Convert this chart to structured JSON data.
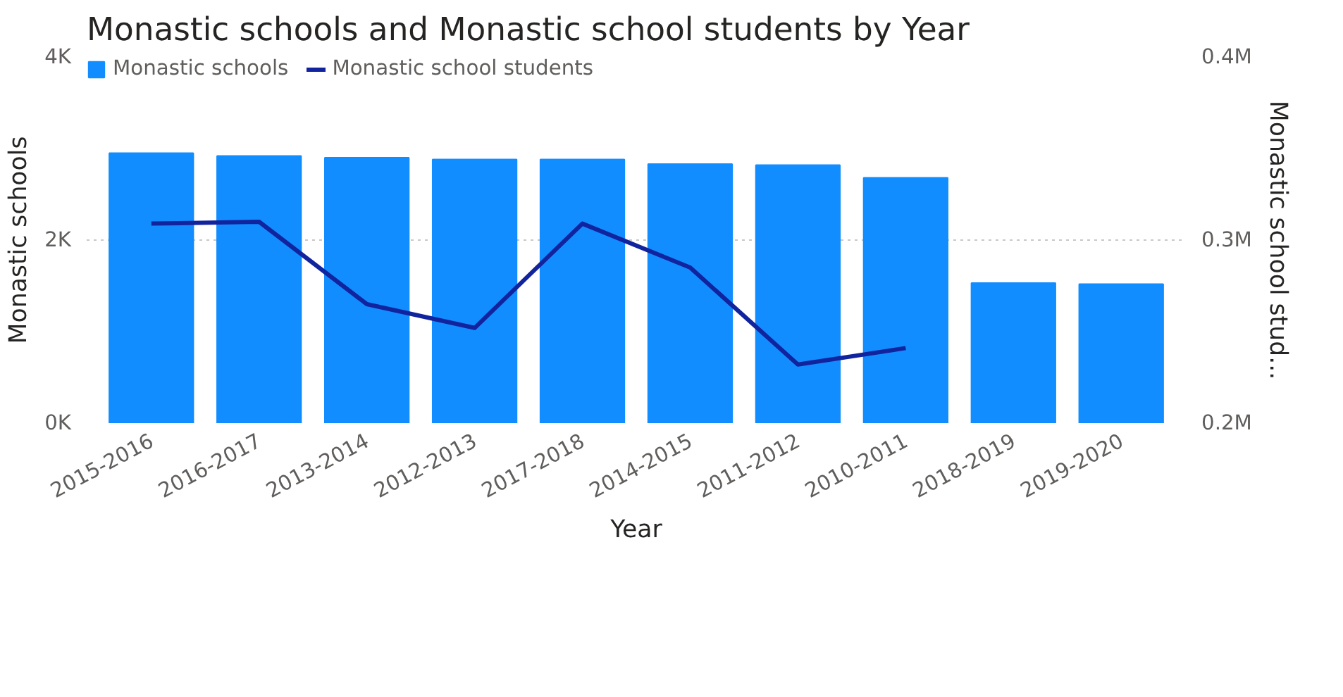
{
  "chart_data": {
    "type": "bar",
    "title": "Monastic schools and Monastic school students by Year",
    "xlabel": "Year",
    "ylabel": "Monastic schools",
    "y2label": "Monastic school stud...",
    "categories": [
      "2015-2016",
      "2016-2017",
      "2013-2014",
      "2012-2013",
      "2017-2018",
      "2014-2015",
      "2011-2012",
      "2010-2011",
      "2018-2019",
      "2019-2020"
    ],
    "series": [
      {
        "name": "Monastic schools",
        "color": "#118dff",
        "values": [
          2950,
          2920,
          2900,
          2880,
          2880,
          2830,
          2820,
          2680,
          1530,
          1520
        ]
      },
      {
        "name": "Monastic school students",
        "type": "line",
        "axis": "y2",
        "color": "#12239e",
        "values": [
          309000,
          310000,
          265000,
          252000,
          309000,
          285000,
          232000,
          241000,
          null,
          null
        ]
      }
    ],
    "ylim": [
      0,
      4000
    ],
    "yticks": [
      {
        "value": 0,
        "label": "0K"
      },
      {
        "value": 2000,
        "label": "2K"
      },
      {
        "value": 4000,
        "label": "4K"
      }
    ],
    "y2lim": [
      200000,
      400000
    ],
    "y2ticks": [
      {
        "value": 200000,
        "label": "0.2M"
      },
      {
        "value": 300000,
        "label": "0.3M"
      },
      {
        "value": 400000,
        "label": "0.4M"
      }
    ],
    "grid": "y",
    "legend": "top left",
    "marker": "none",
    "line_style": "solid"
  }
}
